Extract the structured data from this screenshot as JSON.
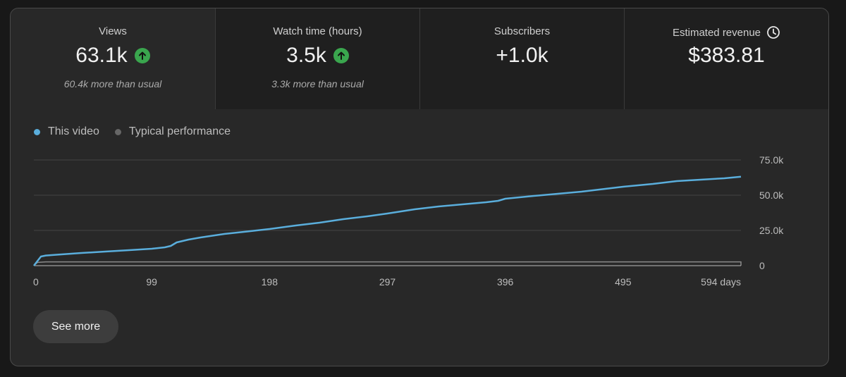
{
  "metrics": [
    {
      "label": "Views",
      "value": "63.1k",
      "compare": "60.4k more than usual",
      "trend": "up",
      "selected": true
    },
    {
      "label": "Watch time (hours)",
      "value": "3.5k",
      "compare": "3.3k more than usual",
      "trend": "up",
      "selected": false
    },
    {
      "label": "Subscribers",
      "value": "+1.0k",
      "compare": "",
      "trend": "",
      "selected": false
    },
    {
      "label": "Estimated revenue",
      "value": "$383.81",
      "compare": "",
      "trend": "",
      "selected": false,
      "icon": "clock-icon"
    }
  ],
  "legend": [
    {
      "label": "This video",
      "color": "#5aaedc"
    },
    {
      "label": "Typical performance",
      "color": "#666666"
    }
  ],
  "see_more_label": "See more",
  "colors": {
    "trend_up": "#3aa64e",
    "series_this": "#5aaedc",
    "series_typical": "#8a8a8a"
  },
  "chart_data": {
    "type": "line",
    "x_tick_labels": [
      "0",
      "99",
      "198",
      "297",
      "396",
      "495",
      "594 days"
    ],
    "x_ticks": [
      0,
      99,
      198,
      297,
      396,
      495,
      594
    ],
    "y_tick_labels": [
      "0",
      "25.0k",
      "50.0k",
      "75.0k"
    ],
    "y_ticks": [
      0,
      25000,
      50000,
      75000
    ],
    "xlim": [
      0,
      594
    ],
    "ylim": [
      0,
      75000
    ],
    "grid": true,
    "legend_position": "top-left",
    "series": [
      {
        "name": "This video",
        "x": [
          0,
          6,
          10,
          20,
          40,
          60,
          80,
          99,
          110,
          115,
          120,
          130,
          140,
          160,
          180,
          198,
          220,
          240,
          260,
          280,
          297,
          320,
          340,
          360,
          380,
          390,
          396,
          420,
          440,
          460,
          480,
          495,
          520,
          540,
          560,
          580,
          594
        ],
        "y": [
          0,
          6500,
          7200,
          7800,
          9000,
          10000,
          11000,
          12000,
          13000,
          14000,
          16500,
          18500,
          20000,
          22500,
          24300,
          26000,
          28500,
          30500,
          33000,
          35000,
          37000,
          40000,
          42000,
          43500,
          45000,
          46000,
          47500,
          49500,
          51000,
          52500,
          54500,
          56000,
          58000,
          60000,
          61000,
          62000,
          63100
        ]
      },
      {
        "name": "Typical performance",
        "x": [
          0,
          3,
          10,
          594
        ],
        "y": [
          0,
          2300,
          2700,
          2700
        ]
      }
    ]
  }
}
